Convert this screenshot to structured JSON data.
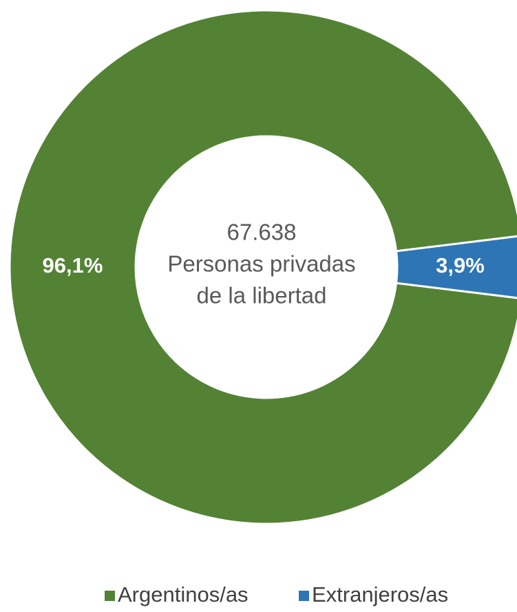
{
  "chart_data": {
    "type": "donut",
    "center_text": [
      "67.638",
      "Personas privadas",
      "de la libertad"
    ],
    "categories": [
      "Argentinos/as",
      "Extranjeros/as"
    ],
    "values": [
      96.1,
      3.9
    ],
    "value_labels": [
      "96,1%",
      "3,9%"
    ],
    "colors": [
      "#548235",
      "#2e75b6"
    ],
    "legend": "bottom"
  }
}
